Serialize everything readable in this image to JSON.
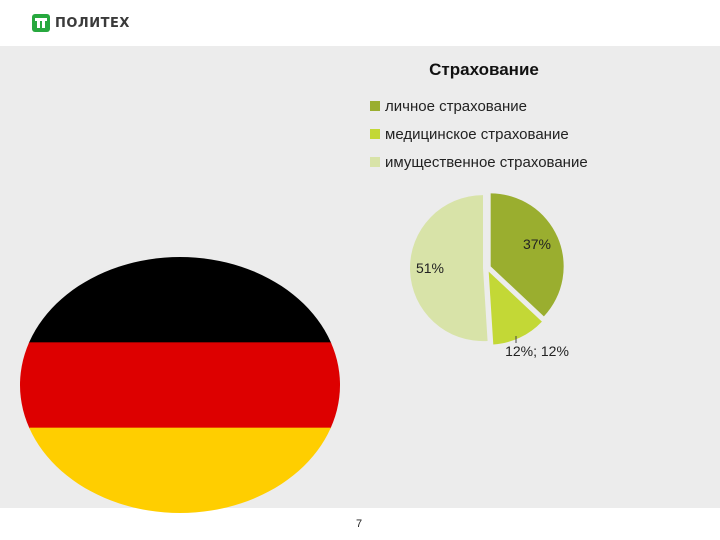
{
  "header": {
    "logo_text": "ПОЛИТЕХ"
  },
  "footer": {
    "page_number": "7"
  },
  "colors": {
    "content_bg": "#ececec",
    "flag": [
      "#000000",
      "#dd0000",
      "#ffce00"
    ]
  },
  "chart_data": {
    "type": "pie",
    "title": "Страхование",
    "legend_position": "top",
    "series": [
      {
        "name": "личное страхование",
        "value": 37,
        "label": "37%",
        "color": "#9aae2f"
      },
      {
        "name": "медицинское страхование",
        "value": 12,
        "label": "12%; 12%",
        "color": "#c3d836"
      },
      {
        "name": "имущественное страхование",
        "value": 51,
        "label": "51%",
        "color": "#d8e3a8"
      }
    ]
  }
}
